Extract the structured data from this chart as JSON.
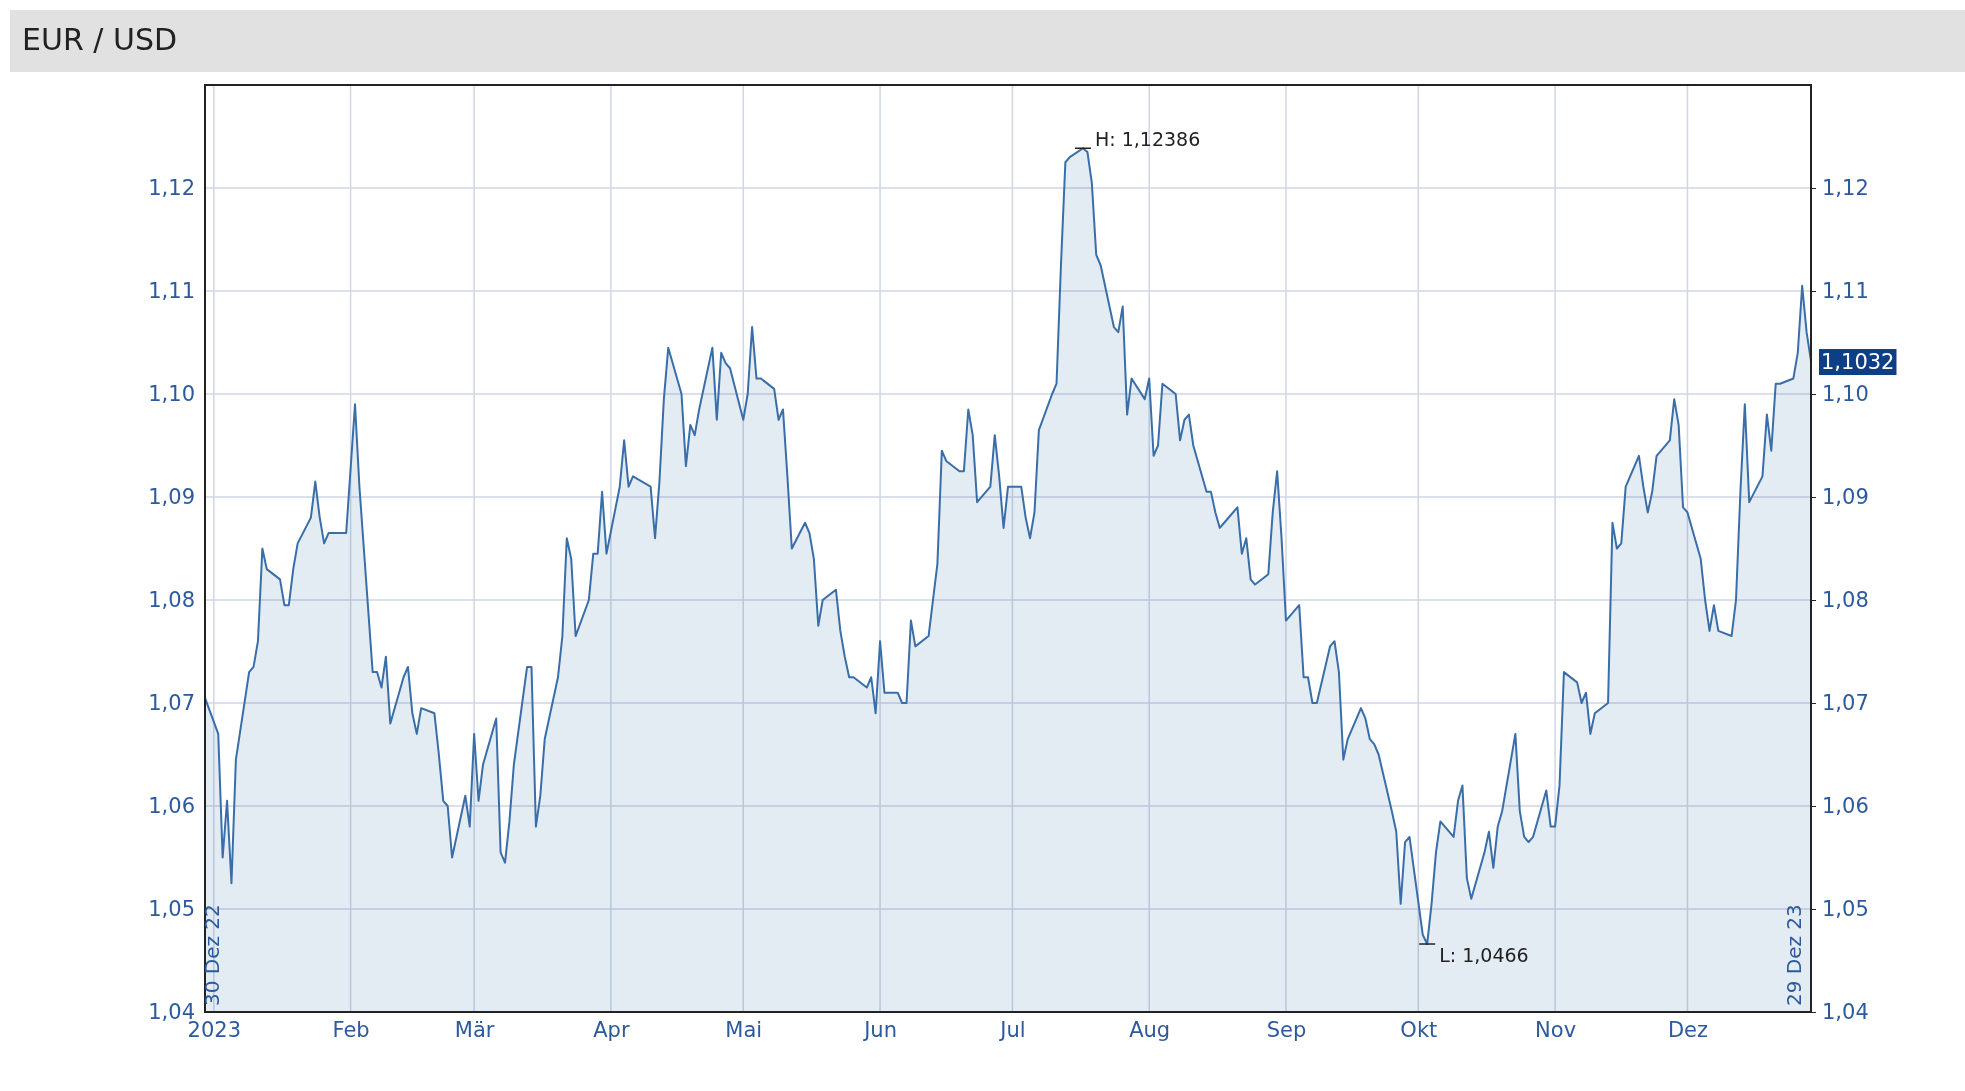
{
  "chart_data": {
    "type": "area",
    "title": "EUR / USD",
    "x": [
      "2022-12-30",
      "2023-01-02",
      "2023-01-03",
      "2023-01-04",
      "2023-01-05",
      "2023-01-06",
      "2023-01-09",
      "2023-01-10",
      "2023-01-11",
      "2023-01-12",
      "2023-01-13",
      "2023-01-16",
      "2023-01-17",
      "2023-01-18",
      "2023-01-19",
      "2023-01-20",
      "2023-01-23",
      "2023-01-24",
      "2023-01-25",
      "2023-01-26",
      "2023-01-27",
      "2023-01-31",
      "2023-02-02",
      "2023-02-03",
      "2023-02-06",
      "2023-02-07",
      "2023-02-08",
      "2023-02-09",
      "2023-02-10",
      "2023-02-13",
      "2023-02-14",
      "2023-02-15",
      "2023-02-16",
      "2023-02-17",
      "2023-02-20",
      "2023-02-21",
      "2023-02-22",
      "2023-02-23",
      "2023-02-24",
      "2023-02-27",
      "2023-02-28",
      "2023-03-01",
      "2023-03-02",
      "2023-03-03",
      "2023-03-06",
      "2023-03-07",
      "2023-03-08",
      "2023-03-09",
      "2023-03-10",
      "2023-03-13",
      "2023-03-14",
      "2023-03-15",
      "2023-03-16",
      "2023-03-17",
      "2023-03-20",
      "2023-03-21",
      "2023-03-22",
      "2023-03-23",
      "2023-03-24",
      "2023-03-27",
      "2023-03-28",
      "2023-03-29",
      "2023-03-30",
      "2023-03-31",
      "2023-04-03",
      "2023-04-04",
      "2023-04-05",
      "2023-04-06",
      "2023-04-10",
      "2023-04-11",
      "2023-04-12",
      "2023-04-13",
      "2023-04-14",
      "2023-04-17",
      "2023-04-18",
      "2023-04-19",
      "2023-04-20",
      "2023-04-21",
      "2023-04-24",
      "2023-04-25",
      "2023-04-26",
      "2023-04-27",
      "2023-04-28",
      "2023-05-01",
      "2023-05-02",
      "2023-05-03",
      "2023-05-04",
      "2023-05-05",
      "2023-05-08",
      "2023-05-09",
      "2023-05-10",
      "2023-05-11",
      "2023-05-12",
      "2023-05-15",
      "2023-05-16",
      "2023-05-17",
      "2023-05-18",
      "2023-05-19",
      "2023-05-22",
      "2023-05-23",
      "2023-05-24",
      "2023-05-25",
      "2023-05-26",
      "2023-05-29",
      "2023-05-30",
      "2023-05-31",
      "2023-06-01",
      "2023-06-02",
      "2023-06-05",
      "2023-06-06",
      "2023-06-07",
      "2023-06-08",
      "2023-06-09",
      "2023-06-12",
      "2023-06-13",
      "2023-06-14",
      "2023-06-15",
      "2023-06-16",
      "2023-06-19",
      "2023-06-20",
      "2023-06-21",
      "2023-06-22",
      "2023-06-23",
      "2023-06-26",
      "2023-06-27",
      "2023-06-28",
      "2023-06-29",
      "2023-06-30",
      "2023-07-03",
      "2023-07-04",
      "2023-07-05",
      "2023-07-06",
      "2023-07-07",
      "2023-07-10",
      "2023-07-11",
      "2023-07-12",
      "2023-07-13",
      "2023-07-14",
      "2023-07-17",
      "2023-07-18",
      "2023-07-19",
      "2023-07-20",
      "2023-07-21",
      "2023-07-24",
      "2023-07-25",
      "2023-07-26",
      "2023-07-27",
      "2023-07-28",
      "2023-07-31",
      "2023-08-01",
      "2023-08-02",
      "2023-08-03",
      "2023-08-04",
      "2023-08-07",
      "2023-08-08",
      "2023-08-09",
      "2023-08-10",
      "2023-08-11",
      "2023-08-14",
      "2023-08-15",
      "2023-08-16",
      "2023-08-17",
      "2023-08-18",
      "2023-08-21",
      "2023-08-22",
      "2023-08-23",
      "2023-08-24",
      "2023-08-25",
      "2023-08-28",
      "2023-08-29",
      "2023-08-30",
      "2023-08-31",
      "2023-09-01",
      "2023-09-04",
      "2023-09-05",
      "2023-09-06",
      "2023-09-07",
      "2023-09-08",
      "2023-09-11",
      "2023-09-12",
      "2023-09-13",
      "2023-09-14",
      "2023-09-15",
      "2023-09-18",
      "2023-09-19",
      "2023-09-20",
      "2023-09-21",
      "2023-09-22",
      "2023-09-25",
      "2023-09-26",
      "2023-09-27",
      "2023-09-28",
      "2023-09-29",
      "2023-10-02",
      "2023-10-03",
      "2023-10-04",
      "2023-10-05",
      "2023-10-06",
      "2023-10-09",
      "2023-10-10",
      "2023-10-11",
      "2023-10-12",
      "2023-10-13",
      "2023-10-16",
      "2023-10-17",
      "2023-10-18",
      "2023-10-19",
      "2023-10-20",
      "2023-10-23",
      "2023-10-24",
      "2023-10-25",
      "2023-10-26",
      "2023-10-27",
      "2023-10-30",
      "2023-10-31",
      "2023-11-01",
      "2023-11-02",
      "2023-11-03",
      "2023-11-06",
      "2023-11-07",
      "2023-11-08",
      "2023-11-09",
      "2023-11-10",
      "2023-11-13",
      "2023-11-14",
      "2023-11-15",
      "2023-11-16",
      "2023-11-17",
      "2023-11-20",
      "2023-11-21",
      "2023-11-22",
      "2023-11-23",
      "2023-11-24",
      "2023-11-27",
      "2023-11-28",
      "2023-11-29",
      "2023-11-30",
      "2023-12-01",
      "2023-12-04",
      "2023-12-05",
      "2023-12-06",
      "2023-12-07",
      "2023-12-08",
      "2023-12-11",
      "2023-12-12",
      "2023-12-13",
      "2023-12-14",
      "2023-12-15",
      "2023-12-18",
      "2023-12-19",
      "2023-12-20",
      "2023-12-21",
      "2023-12-22",
      "2023-12-25",
      "2023-12-26",
      "2023-12-27",
      "2023-12-28",
      "2023-12-29"
    ],
    "series": [
      {
        "color": "#3a6ea8",
        "values": [
          1.0705,
          1.067,
          1.055,
          1.0605,
          1.0525,
          1.0645,
          1.073,
          1.0735,
          1.076,
          1.085,
          1.083,
          1.082,
          1.0795,
          1.0795,
          1.083,
          1.0855,
          1.088,
          1.0915,
          1.088,
          1.0855,
          1.0865,
          1.0865,
          1.099,
          1.091,
          1.073,
          1.073,
          1.0715,
          1.0745,
          1.068,
          1.0725,
          1.0735,
          1.069,
          1.067,
          1.0695,
          1.069,
          1.065,
          1.0605,
          1.06,
          1.055,
          1.061,
          1.058,
          1.067,
          1.0605,
          1.064,
          1.0685,
          1.0555,
          1.0545,
          1.0585,
          1.064,
          1.0735,
          1.0735,
          1.058,
          1.061,
          1.0665,
          1.0725,
          1.0765,
          1.086,
          1.084,
          1.0765,
          1.08,
          1.0845,
          1.0845,
          1.0905,
          1.0845,
          1.091,
          1.0955,
          1.091,
          1.092,
          1.091,
          1.086,
          1.0915,
          1.0995,
          1.1045,
          1.1,
          1.093,
          1.097,
          1.096,
          1.0985,
          1.1045,
          1.0975,
          1.104,
          1.103,
          1.1025,
          1.0975,
          1.1,
          1.1065,
          1.1015,
          1.1015,
          1.1005,
          1.0975,
          1.0985,
          1.092,
          1.085,
          1.0875,
          1.0865,
          1.084,
          1.0775,
          1.08,
          1.081,
          1.077,
          1.0745,
          1.0725,
          1.0725,
          1.0715,
          1.0725,
          1.069,
          1.076,
          1.071,
          1.071,
          1.07,
          1.07,
          1.078,
          1.0755,
          1.0765,
          1.08,
          1.0835,
          1.0945,
          1.0935,
          1.0925,
          1.0925,
          1.0985,
          1.096,
          1.0895,
          1.091,
          1.096,
          1.092,
          1.087,
          1.091,
          1.091,
          1.088,
          1.086,
          1.0885,
          1.0965,
          1.1,
          1.101,
          1.1125,
          1.1225,
          1.123,
          1.12386,
          1.1235,
          1.1205,
          1.1135,
          1.1125,
          1.1065,
          1.106,
          1.1085,
          1.098,
          1.1015,
          1.0995,
          1.1015,
          1.094,
          1.095,
          1.101,
          1.1,
          1.0955,
          1.0975,
          1.098,
          1.095,
          1.0905,
          1.0905,
          1.0885,
          1.087,
          1.0875,
          1.089,
          1.0845,
          1.086,
          1.082,
          1.0815,
          1.0825,
          1.0885,
          1.0925,
          1.086,
          1.078,
          1.0795,
          1.0725,
          1.0725,
          1.07,
          1.07,
          1.0755,
          1.076,
          1.073,
          1.0645,
          1.0665,
          1.0695,
          1.0685,
          1.0665,
          1.066,
          1.065,
          1.0595,
          1.0575,
          1.0505,
          1.0565,
          1.057,
          1.0475,
          1.0466,
          1.0505,
          1.0555,
          1.0585,
          1.057,
          1.0605,
          1.062,
          1.053,
          1.051,
          1.0555,
          1.0575,
          1.054,
          1.058,
          1.0595,
          1.067,
          1.0595,
          1.057,
          1.0565,
          1.057,
          1.0615,
          1.058,
          1.058,
          1.062,
          1.073,
          1.072,
          1.07,
          1.071,
          1.067,
          1.069,
          1.07,
          1.0875,
          1.085,
          1.0855,
          1.091,
          1.094,
          1.091,
          1.0885,
          1.0905,
          1.094,
          1.0955,
          1.0995,
          1.097,
          1.089,
          1.0885,
          1.084,
          1.08,
          1.077,
          1.0795,
          1.077,
          1.0765,
          1.08,
          1.0905,
          1.099,
          1.0895,
          1.092,
          1.098,
          1.0945,
          1.101,
          1.101,
          1.1015,
          1.104,
          1.1105,
          1.106,
          1.1032
        ]
      }
    ],
    "xlim": [
      "2022-12-30",
      "2023-12-29"
    ],
    "xticks": [
      {
        "value": "2023-01-01",
        "label": "2023"
      },
      {
        "value": "2023-02-01",
        "label": "Feb"
      },
      {
        "value": "2023-03-01",
        "label": "Mär"
      },
      {
        "value": "2023-04-01",
        "label": "Apr"
      },
      {
        "value": "2023-05-01",
        "label": "Mai"
      },
      {
        "value": "2023-06-01",
        "label": "Jun"
      },
      {
        "value": "2023-07-01",
        "label": "Jul"
      },
      {
        "value": "2023-08-01",
        "label": "Aug"
      },
      {
        "value": "2023-09-01",
        "label": "Sep"
      },
      {
        "value": "2023-10-01",
        "label": "Okt"
      },
      {
        "value": "2023-11-01",
        "label": "Nov"
      },
      {
        "value": "2023-12-01",
        "label": "Dez"
      }
    ],
    "ylim": [
      1.04,
      1.13
    ],
    "yticks": [
      {
        "value": 1.04,
        "label": "1,04"
      },
      {
        "value": 1.05,
        "label": "1,05"
      },
      {
        "value": 1.06,
        "label": "1,06"
      },
      {
        "value": 1.07,
        "label": "1,07"
      },
      {
        "value": 1.08,
        "label": "1,08"
      },
      {
        "value": 1.09,
        "label": "1,09"
      },
      {
        "value": 1.1,
        "label": "1,10"
      },
      {
        "value": 1.11,
        "label": "1,11"
      },
      {
        "value": 1.12,
        "label": "1,12"
      }
    ],
    "y2lim": [
      1.04,
      1.13
    ],
    "y2ticks": [
      {
        "value": 1.04,
        "label": "1,04"
      },
      {
        "value": 1.05,
        "label": "1,05"
      },
      {
        "value": 1.06,
        "label": "1,06"
      },
      {
        "value": 1.07,
        "label": "1,07"
      },
      {
        "value": 1.08,
        "label": "1,08"
      },
      {
        "value": 1.09,
        "label": "1,09"
      },
      {
        "value": 1.1,
        "label": "1,10"
      },
      {
        "value": 1.11,
        "label": "1,11"
      },
      {
        "value": 1.12,
        "label": "1,12"
      }
    ],
    "grid": true,
    "annotations": [
      {
        "text": "H: 1,12386",
        "x": "2023-07-17",
        "y": 1.12386
      },
      {
        "text": "L: 1,0466",
        "x": "2023-10-03",
        "y": 1.0466
      },
      {
        "text": "1,1032",
        "x": "2023-12-29",
        "y": 1.1032
      },
      {
        "text": "30 Dez 22",
        "x": "2022-12-30"
      },
      {
        "text": "29 Dez 23",
        "x": "2023-12-29"
      }
    ]
  }
}
